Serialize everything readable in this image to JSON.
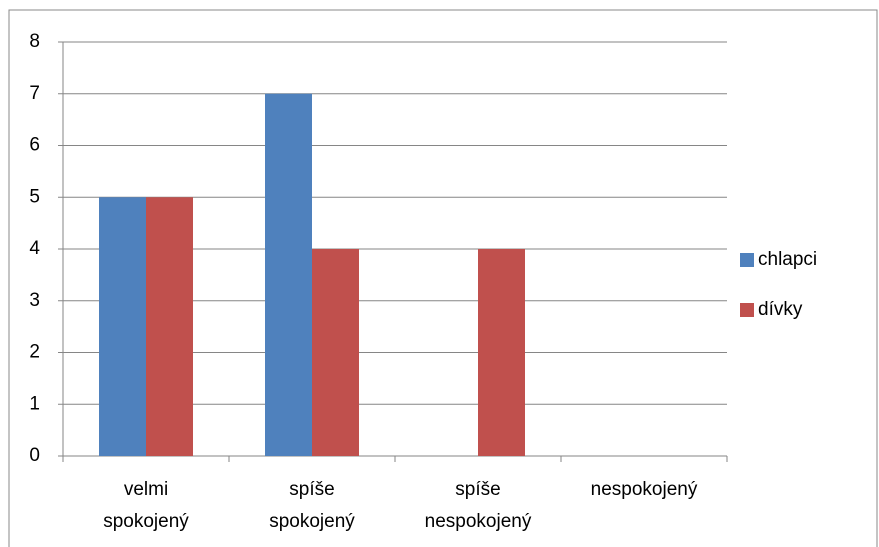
{
  "chart_data": {
    "type": "bar",
    "categories": [
      "velmi spokojený",
      "spíše spokojený",
      "spíše nespokojený",
      "nespokojený"
    ],
    "series": [
      {
        "name": "chlapci",
        "color": "#4f81bd",
        "values": [
          5,
          7,
          0,
          0
        ]
      },
      {
        "name": "dívky",
        "color": "#c0504d",
        "values": [
          5,
          4,
          4,
          0
        ]
      }
    ],
    "ylim": [
      0,
      8
    ],
    "yticks": [
      0,
      1,
      2,
      3,
      4,
      5,
      6,
      7,
      8
    ],
    "grid": true,
    "legend": "right"
  }
}
